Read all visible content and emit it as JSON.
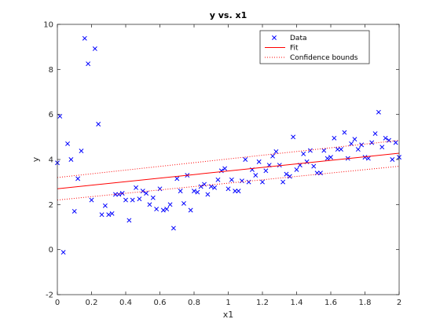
{
  "chart_data": {
    "type": "scatter",
    "title": "y vs. x1",
    "xlabel": "x1",
    "ylabel": "y",
    "xlim": [
      0,
      2
    ],
    "ylim": [
      -2,
      10
    ],
    "xticks": [
      "0",
      "0.2",
      "0.4",
      "0.6",
      "0.8",
      "1",
      "1.2",
      "1.4",
      "1.6",
      "1.8",
      "2"
    ],
    "yticks": [
      "-2",
      "0",
      "2",
      "4",
      "6",
      "8",
      "10"
    ],
    "grid": false,
    "legend_position": "top-right",
    "series": [
      {
        "name": "Data",
        "kind": "markers",
        "marker": "x",
        "color": "#0000ff",
        "points": [
          [
            0.0,
            3.85
          ],
          [
            0.015,
            5.92
          ],
          [
            0.035,
            -0.12
          ],
          [
            0.06,
            4.7
          ],
          [
            0.08,
            4.0
          ],
          [
            0.1,
            1.7
          ],
          [
            0.12,
            3.15
          ],
          [
            0.14,
            4.38
          ],
          [
            0.16,
            9.38
          ],
          [
            0.18,
            8.25
          ],
          [
            0.2,
            2.2
          ],
          [
            0.22,
            8.92
          ],
          [
            0.24,
            5.57
          ],
          [
            0.26,
            1.55
          ],
          [
            0.28,
            1.95
          ],
          [
            0.3,
            1.55
          ],
          [
            0.32,
            1.6
          ],
          [
            0.34,
            2.45
          ],
          [
            0.36,
            2.45
          ],
          [
            0.38,
            2.5
          ],
          [
            0.4,
            2.2
          ],
          [
            0.42,
            1.3
          ],
          [
            0.44,
            2.2
          ],
          [
            0.46,
            2.75
          ],
          [
            0.48,
            2.25
          ],
          [
            0.5,
            2.6
          ],
          [
            0.52,
            2.5
          ],
          [
            0.54,
            2.0
          ],
          [
            0.56,
            2.3
          ],
          [
            0.58,
            1.8
          ],
          [
            0.6,
            2.7
          ],
          [
            0.62,
            1.75
          ],
          [
            0.64,
            1.8
          ],
          [
            0.66,
            2.0
          ],
          [
            0.68,
            0.95
          ],
          [
            0.7,
            3.15
          ],
          [
            0.72,
            2.6
          ],
          [
            0.74,
            2.05
          ],
          [
            0.76,
            3.3
          ],
          [
            0.78,
            1.75
          ],
          [
            0.8,
            2.6
          ],
          [
            0.82,
            2.55
          ],
          [
            0.84,
            2.8
          ],
          [
            0.86,
            2.9
          ],
          [
            0.88,
            2.45
          ],
          [
            0.9,
            2.8
          ],
          [
            0.92,
            2.75
          ],
          [
            0.94,
            3.1
          ],
          [
            0.96,
            3.5
          ],
          [
            0.98,
            3.6
          ],
          [
            1.0,
            2.7
          ],
          [
            1.02,
            3.1
          ],
          [
            1.04,
            2.6
          ],
          [
            1.06,
            2.6
          ],
          [
            1.08,
            3.05
          ],
          [
            1.1,
            4.0
          ],
          [
            1.12,
            3.0
          ],
          [
            1.14,
            3.55
          ],
          [
            1.16,
            3.3
          ],
          [
            1.18,
            3.9
          ],
          [
            1.2,
            3.0
          ],
          [
            1.22,
            3.5
          ],
          [
            1.24,
            3.75
          ],
          [
            1.26,
            4.15
          ],
          [
            1.28,
            4.35
          ],
          [
            1.3,
            3.75
          ],
          [
            1.32,
            3.0
          ],
          [
            1.34,
            3.35
          ],
          [
            1.36,
            3.25
          ],
          [
            1.38,
            5.0
          ],
          [
            1.4,
            3.55
          ],
          [
            1.42,
            3.75
          ],
          [
            1.44,
            4.25
          ],
          [
            1.46,
            3.9
          ],
          [
            1.48,
            4.4
          ],
          [
            1.5,
            3.7
          ],
          [
            1.52,
            3.4
          ],
          [
            1.54,
            3.4
          ],
          [
            1.56,
            4.4
          ],
          [
            1.58,
            4.05
          ],
          [
            1.6,
            4.1
          ],
          [
            1.62,
            4.95
          ],
          [
            1.64,
            4.45
          ],
          [
            1.66,
            4.45
          ],
          [
            1.68,
            5.2
          ],
          [
            1.7,
            4.05
          ],
          [
            1.72,
            4.7
          ],
          [
            1.74,
            4.9
          ],
          [
            1.76,
            4.45
          ],
          [
            1.78,
            4.65
          ],
          [
            1.8,
            4.1
          ],
          [
            1.82,
            4.05
          ],
          [
            1.84,
            4.75
          ],
          [
            1.86,
            5.15
          ],
          [
            1.88,
            6.1
          ],
          [
            1.9,
            4.55
          ],
          [
            1.92,
            4.95
          ],
          [
            1.94,
            4.85
          ],
          [
            1.96,
            4.0
          ],
          [
            1.98,
            4.75
          ],
          [
            2.0,
            4.1
          ]
        ]
      },
      {
        "name": "Fit",
        "kind": "line",
        "style": "solid",
        "color": "#ff0000",
        "x": [
          0,
          2
        ],
        "y": [
          2.7,
          4.28
        ]
      },
      {
        "name": "Confidence bounds",
        "kind": "line",
        "style": "dotted",
        "color": "#ff0000",
        "x": [
          0,
          2
        ],
        "y": [
          3.2,
          4.85
        ]
      },
      {
        "name": "Confidence bounds",
        "kind": "line",
        "style": "dotted",
        "color": "#ff0000",
        "x": [
          0,
          2
        ],
        "y": [
          2.2,
          3.7
        ]
      }
    ]
  }
}
